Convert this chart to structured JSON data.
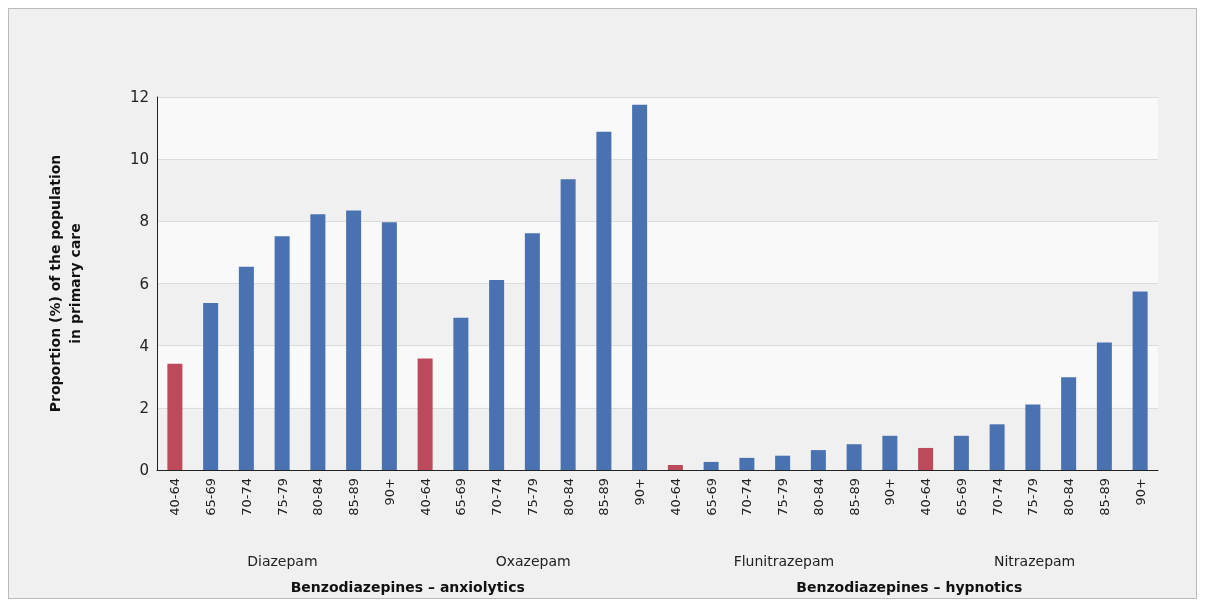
{
  "chart_data": {
    "type": "bar",
    "ylabel": "Proportion (%) of the population\nin primary care",
    "categories": [
      "40-64",
      "65-69",
      "70-74",
      "75-79",
      "80-84",
      "85-89",
      "90+",
      "40-64",
      "65-69",
      "70-74",
      "75-79",
      "80-84",
      "85-89",
      "90+",
      "40-64",
      "65-69",
      "70-74",
      "75-79",
      "80-84",
      "85-89",
      "90+",
      "40-64",
      "65-69",
      "70-74",
      "75-79",
      "80-84",
      "85-89",
      "90+"
    ],
    "values": [
      3.42,
      5.37,
      6.54,
      7.52,
      8.23,
      8.35,
      7.97,
      3.59,
      4.9,
      6.11,
      7.62,
      9.35,
      10.88,
      11.75,
      0.16,
      0.26,
      0.39,
      0.46,
      0.64,
      0.83,
      1.1,
      0.71,
      1.1,
      1.47,
      2.11,
      2.98,
      4.1,
      5.74
    ],
    "colors": [
      "#bc4a5a",
      "#4a72b0",
      "#4a72b0",
      "#4a72b0",
      "#4a72b0",
      "#4a72b0",
      "#4a72b0",
      "#bc4a5a",
      "#4a72b0",
      "#4a72b0",
      "#4a72b0",
      "#4a72b0",
      "#4a72b0",
      "#4a72b0",
      "#bc4a5a",
      "#4a72b0",
      "#4a72b0",
      "#4a72b0",
      "#4a72b0",
      "#4a72b0",
      "#4a72b0",
      "#bc4a5a",
      "#4a72b0",
      "#4a72b0",
      "#4a72b0",
      "#4a72b0",
      "#4a72b0",
      "#4a72b0"
    ],
    "ylim": [
      0,
      12
    ],
    "yticks": [
      0,
      2,
      4,
      6,
      8,
      10,
      12
    ],
    "grid": "y",
    "annotations": [
      "Diazepam",
      "Oxazepam",
      "Flunitrazepam",
      "Nitrazepam",
      "Benzodiazepines – anxiolytics",
      "Benzodiazepines – hypnotics"
    ]
  }
}
